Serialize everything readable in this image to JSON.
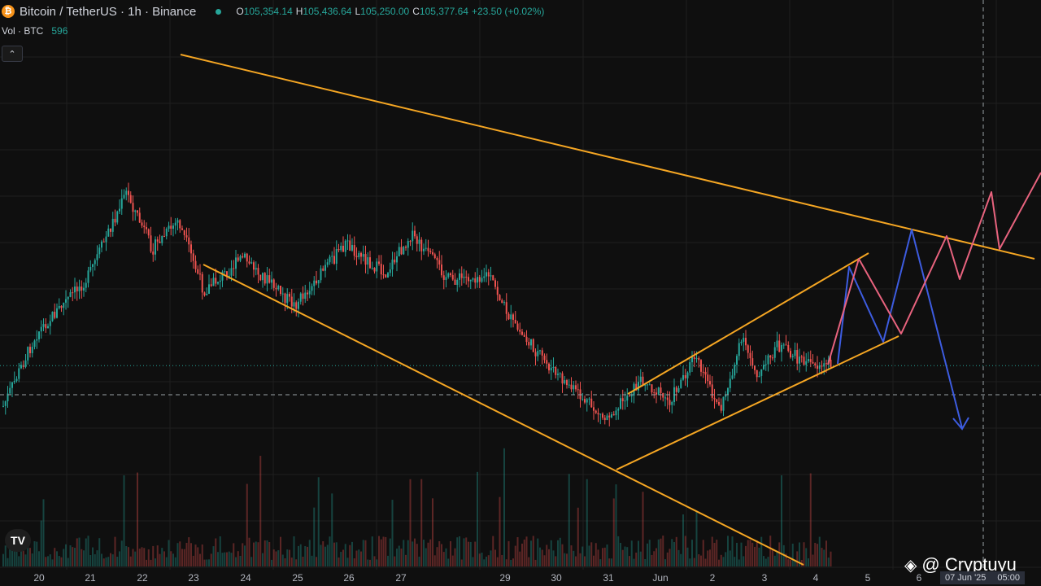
{
  "header": {
    "symbol_title": "Bitcoin / TetherUS · 1h · Binance",
    "open_label": "O",
    "open": "105,354.14",
    "high_label": "H",
    "high": "105,436.64",
    "low_label": "L",
    "low": "105,250.00",
    "close_label": "C",
    "close": "105,377.64",
    "change": "+23.50 (+0.02%)"
  },
  "volume": {
    "label": "Vol · BTC",
    "value": "596"
  },
  "collapse_icon": "chevron-up-icon",
  "logo_text": "TV",
  "watermark": {
    "icon": "binance-diamond-icon",
    "text": "@ Cryptuyu"
  },
  "crosshair": {
    "date": "07 Jun '25",
    "time": "05:00"
  },
  "colors": {
    "up": "#26a69a",
    "down": "#ef5350",
    "trendline": "#f5a623",
    "projection_blue": "#3d5ce0",
    "projection_pink": "#e8637e"
  },
  "chart_data": {
    "type": "candlestick",
    "x_tick_labels": [
      "20",
      "21",
      "22",
      "23",
      "24",
      "25",
      "26",
      "27",
      "29",
      "30",
      "31",
      "Jun",
      "2",
      "3",
      "4",
      "5",
      "6"
    ],
    "price_anchors": [
      {
        "date": "May 19",
        "price": 100000
      },
      {
        "date": "May 19",
        "price": 103500
      },
      {
        "date": "May 20",
        "price": 106500
      },
      {
        "date": "May 21",
        "price": 108500
      },
      {
        "date": "May 22",
        "price": 111500
      },
      {
        "date": "May 22",
        "price": 109500
      },
      {
        "date": "May 23",
        "price": 110500
      },
      {
        "date": "May 23",
        "price": 108000
      },
      {
        "date": "May 24",
        "price": 109200
      },
      {
        "date": "May 25",
        "price": 107500
      },
      {
        "date": "May 26",
        "price": 109700
      },
      {
        "date": "May 27",
        "price": 108600
      },
      {
        "date": "May 27",
        "price": 110000
      },
      {
        "date": "May 28",
        "price": 108400
      },
      {
        "date": "May 29",
        "price": 108600
      },
      {
        "date": "May 29",
        "price": 106800
      },
      {
        "date": "May 30",
        "price": 105200
      },
      {
        "date": "May 31",
        "price": 103500
      },
      {
        "date": "Jun 1",
        "price": 104900
      },
      {
        "date": "Jun 1",
        "price": 104100
      },
      {
        "date": "Jun 2",
        "price": 105700
      },
      {
        "date": "Jun 2",
        "price": 103800
      },
      {
        "date": "Jun 3",
        "price": 106300
      },
      {
        "date": "Jun 3",
        "price": 105000
      },
      {
        "date": "Jun 3",
        "price": 106100
      },
      {
        "date": "Jun 4",
        "price": 105400
      }
    ],
    "last_price": 105377.64,
    "horizontal_level": 104350,
    "trendlines": [
      {
        "name": "",
        "from": {
          "date": "May 22",
          "price": 111600
        },
        "to": {
          "date": "Jun 7",
          "price": 107300
        }
      },
      {
        "name": "",
        "from": {
          "date": "May 23",
          "price": 107500
        },
        "to": {
          "date": "Jun 4",
          "price": 99500
        }
      },
      {
        "name": "",
        "from": {
          "date": "May 31",
          "price": 104700
        },
        "to": {
          "date": "Jun 4",
          "price": 107600
        }
      },
      {
        "name": "",
        "from": {
          "date": "May 31",
          "price": 103200
        },
        "to": {
          "date": "Jun 5",
          "price": 105700
        }
      }
    ],
    "projections": [
      {
        "color": "blue",
        "points": [
          {
            "date": "Jun 4",
            "price": 105400
          },
          {
            "date": "Jun 4",
            "price": 107400
          },
          {
            "date": "Jun 5",
            "price": 105700
          },
          {
            "date": "Jun 6",
            "price": 108400
          },
          {
            "date": "Jun 6",
            "price": 103700
          }
        ]
      },
      {
        "color": "pink",
        "points": [
          {
            "date": "Jun 4",
            "price": 105400
          },
          {
            "date": "Jun 4",
            "price": 107700
          },
          {
            "date": "Jun 5",
            "price": 105800
          },
          {
            "date": "Jun 6",
            "price": 108300
          },
          {
            "date": "Jun 6",
            "price": 107600
          },
          {
            "date": "Jun 7",
            "price": 109100
          },
          {
            "date": "Jun 7",
            "price": 108000
          },
          {
            "date": "Jun 8",
            "price": 109700
          }
        ]
      }
    ],
    "grid": true,
    "legend": "none"
  }
}
